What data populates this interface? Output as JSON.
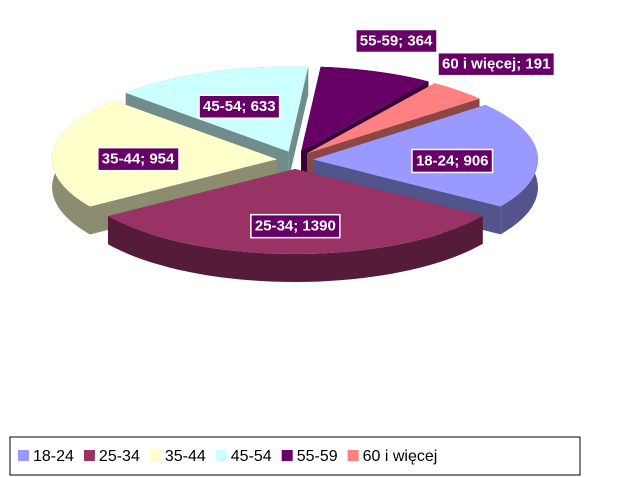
{
  "chart_data": {
    "type": "pie3d",
    "categories": [
      "18-24",
      "25-34",
      "35-44",
      "45-54",
      "55-59",
      "60 i więcej"
    ],
    "values": [
      906,
      1390,
      954,
      633,
      364,
      191
    ],
    "value_labels": [
      "18-24; 906",
      "25-34; 1390",
      "35-44; 954",
      "45-54; 633",
      "55-59; 364",
      "60 i więcej; 191"
    ],
    "colors": [
      "#9999ff",
      "#993366",
      "#ffffcc",
      "#ccffff",
      "#660066",
      "#ff8080"
    ],
    "legend": "bottom"
  }
}
